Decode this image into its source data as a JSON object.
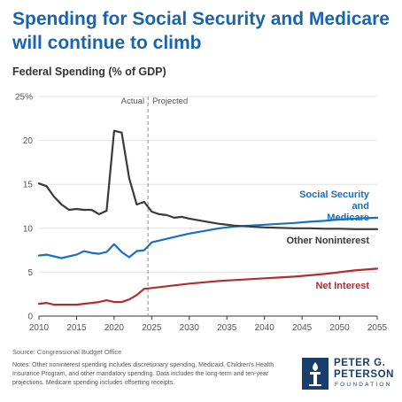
{
  "header": {
    "title": "Spending for Social Security and Medicare will continue to climb",
    "subtitle": "Federal Spending (% of GDP)"
  },
  "footer": {
    "source": "Source: Congressional Budget Office",
    "notes": "Notes: Other noninterest spending includes discretionary spending, Medicaid, Children's Health Insurance Program, and other mandatory spending. Data includes the long-term and ten-year projections. Medicare spending includes offsetting receipts."
  },
  "logo": {
    "line1": "PETER G.",
    "line2": "PETERSON",
    "line3": "FOUNDATION",
    "icon": "peterson-torch-icon"
  },
  "chart_data": {
    "type": "line",
    "xlabel": "",
    "ylabel": "",
    "xlim": [
      2010,
      2055
    ],
    "ylim": [
      0,
      25
    ],
    "x_ticks": [
      "2010",
      "2015",
      "2020",
      "2025",
      "2030",
      "2035",
      "2040",
      "2045",
      "2050",
      "2055"
    ],
    "y_ticks": [
      "0",
      "5",
      "10",
      "15",
      "20",
      "25%"
    ],
    "grid": "horizontal",
    "divider": {
      "x": 2024.5,
      "left_label": "Actual",
      "right_label": "Projected"
    },
    "series": [
      {
        "name": "Social Security and Medicare",
        "color": "#1a6fc0",
        "x": [
          2010,
          2011,
          2012,
          2013,
          2014,
          2015,
          2016,
          2017,
          2018,
          2019,
          2020,
          2021,
          2022,
          2023,
          2024,
          2025,
          2026,
          2027,
          2028,
          2029,
          2030,
          2032,
          2034,
          2036,
          2038,
          2040,
          2042,
          2044,
          2046,
          2048,
          2050,
          2052,
          2055
        ],
        "values": [
          6.9,
          7.0,
          6.8,
          6.6,
          6.8,
          7.0,
          7.4,
          7.2,
          7.1,
          7.3,
          8.2,
          7.3,
          6.7,
          7.4,
          7.5,
          8.4,
          8.6,
          8.8,
          9.0,
          9.2,
          9.4,
          9.7,
          10.0,
          10.2,
          10.3,
          10.4,
          10.5,
          10.6,
          10.75,
          10.85,
          11.0,
          11.1,
          11.2
        ]
      },
      {
        "name": "Other Noninterest",
        "color": "#3a3a3a",
        "x": [
          2010,
          2011,
          2012,
          2013,
          2014,
          2015,
          2016,
          2017,
          2018,
          2019,
          2020,
          2021,
          2022,
          2023,
          2024,
          2025,
          2026,
          2027,
          2028,
          2029,
          2030,
          2032,
          2034,
          2036,
          2038,
          2040,
          2042,
          2044,
          2046,
          2048,
          2050,
          2052,
          2055
        ],
        "values": [
          15.1,
          14.8,
          13.6,
          12.7,
          12.1,
          12.2,
          12.1,
          12.1,
          11.6,
          12.0,
          21.1,
          20.9,
          15.7,
          12.7,
          13.0,
          11.9,
          11.6,
          11.5,
          11.2,
          11.3,
          11.1,
          10.8,
          10.5,
          10.3,
          10.2,
          10.1,
          10.05,
          10.0,
          10.0,
          9.95,
          9.95,
          9.9,
          9.9
        ]
      },
      {
        "name": "Net Interest",
        "color": "#b22d2d",
        "x": [
          2010,
          2011,
          2012,
          2013,
          2014,
          2015,
          2016,
          2017,
          2018,
          2019,
          2020,
          2021,
          2022,
          2023,
          2024,
          2025,
          2026,
          2027,
          2028,
          2029,
          2030,
          2032,
          2034,
          2036,
          2038,
          2040,
          2042,
          2044,
          2046,
          2048,
          2050,
          2052,
          2055
        ],
        "values": [
          1.4,
          1.5,
          1.3,
          1.3,
          1.3,
          1.3,
          1.4,
          1.5,
          1.6,
          1.8,
          1.6,
          1.6,
          1.9,
          2.4,
          3.1,
          3.2,
          3.3,
          3.4,
          3.5,
          3.6,
          3.7,
          3.85,
          4.0,
          4.1,
          4.2,
          4.3,
          4.4,
          4.5,
          4.65,
          4.8,
          5.0,
          5.2,
          5.4
        ]
      }
    ],
    "series_labels": [
      {
        "series": 0,
        "lines": [
          "Social Security",
          "and",
          "Medicare"
        ]
      },
      {
        "series": 1,
        "lines": [
          "Other Noninterest"
        ]
      },
      {
        "series": 2,
        "lines": [
          "Net Interest"
        ]
      }
    ]
  }
}
